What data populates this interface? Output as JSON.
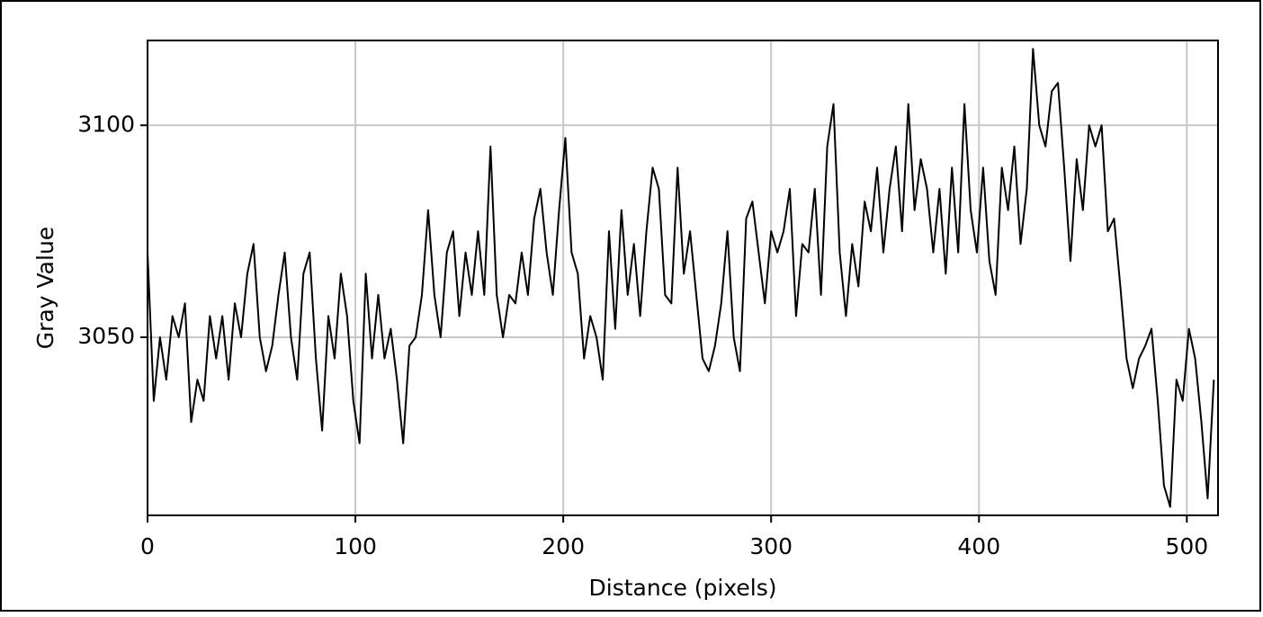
{
  "chart_data": {
    "type": "line",
    "x_label": "Distance (pixels)",
    "y_label": "Gray Value",
    "xlim": [
      0,
      515
    ],
    "ylim": [
      3008,
      3120
    ],
    "xticks": [
      0,
      100,
      200,
      300,
      400,
      500
    ],
    "yticks": [
      3050,
      3100
    ],
    "grid": true,
    "series": [
      {
        "color": "#000000",
        "x": [
          0,
          3,
          6,
          9,
          12,
          15,
          18,
          21,
          24,
          27,
          30,
          33,
          36,
          39,
          42,
          45,
          48,
          51,
          54,
          57,
          60,
          63,
          66,
          69,
          72,
          75,
          78,
          81,
          84,
          87,
          90,
          93,
          96,
          99,
          102,
          105,
          108,
          111,
          114,
          117,
          120,
          123,
          126,
          129,
          132,
          135,
          138,
          141,
          144,
          147,
          150,
          153,
          156,
          159,
          162,
          165,
          168,
          171,
          174,
          177,
          180,
          183,
          186,
          189,
          192,
          195,
          198,
          201,
          204,
          207,
          210,
          213,
          216,
          219,
          222,
          225,
          228,
          231,
          234,
          237,
          240,
          243,
          246,
          249,
          252,
          255,
          258,
          261,
          264,
          267,
          270,
          273,
          276,
          279,
          282,
          285,
          288,
          291,
          294,
          297,
          300,
          303,
          306,
          309,
          312,
          315,
          318,
          321,
          324,
          327,
          330,
          333,
          336,
          339,
          342,
          345,
          348,
          351,
          354,
          357,
          360,
          363,
          366,
          369,
          372,
          375,
          378,
          381,
          384,
          387,
          390,
          393,
          396,
          399,
          402,
          405,
          408,
          411,
          414,
          417,
          420,
          423,
          426,
          429,
          432,
          435,
          438,
          441,
          444,
          447,
          450,
          453,
          456,
          459,
          462,
          465,
          468,
          471,
          474,
          477,
          480,
          483,
          486,
          489,
          492,
          495,
          498,
          501,
          504,
          507,
          510,
          513
        ],
        "values": [
          3070,
          3035,
          3050,
          3040,
          3055,
          3050,
          3058,
          3030,
          3040,
          3035,
          3055,
          3045,
          3055,
          3040,
          3058,
          3050,
          3065,
          3072,
          3050,
          3042,
          3048,
          3060,
          3070,
          3050,
          3040,
          3065,
          3070,
          3045,
          3028,
          3055,
          3045,
          3065,
          3055,
          3035,
          3025,
          3065,
          3045,
          3060,
          3045,
          3052,
          3040,
          3025,
          3048,
          3050,
          3060,
          3080,
          3060,
          3050,
          3070,
          3075,
          3055,
          3070,
          3060,
          3075,
          3060,
          3095,
          3060,
          3050,
          3060,
          3058,
          3070,
          3060,
          3078,
          3085,
          3070,
          3060,
          3080,
          3097,
          3070,
          3065,
          3045,
          3055,
          3050,
          3040,
          3075,
          3052,
          3080,
          3060,
          3072,
          3055,
          3075,
          3090,
          3085,
          3060,
          3058,
          3090,
          3065,
          3075,
          3060,
          3045,
          3042,
          3048,
          3058,
          3075,
          3050,
          3042,
          3078,
          3082,
          3070,
          3058,
          3075,
          3070,
          3075,
          3085,
          3055,
          3072,
          3070,
          3085,
          3060,
          3095,
          3105,
          3070,
          3055,
          3072,
          3062,
          3082,
          3075,
          3090,
          3070,
          3085,
          3095,
          3075,
          3105,
          3080,
          3092,
          3085,
          3070,
          3085,
          3065,
          3090,
          3070,
          3105,
          3080,
          3070,
          3090,
          3068,
          3060,
          3090,
          3080,
          3095,
          3072,
          3085,
          3118,
          3100,
          3095,
          3108,
          3110,
          3090,
          3068,
          3092,
          3080,
          3100,
          3095,
          3100,
          3075,
          3078,
          3062,
          3045,
          3038,
          3045,
          3048,
          3052,
          3035,
          3015,
          3010,
          3040,
          3035,
          3052,
          3045,
          3030,
          3012,
          3040
        ]
      }
    ]
  }
}
